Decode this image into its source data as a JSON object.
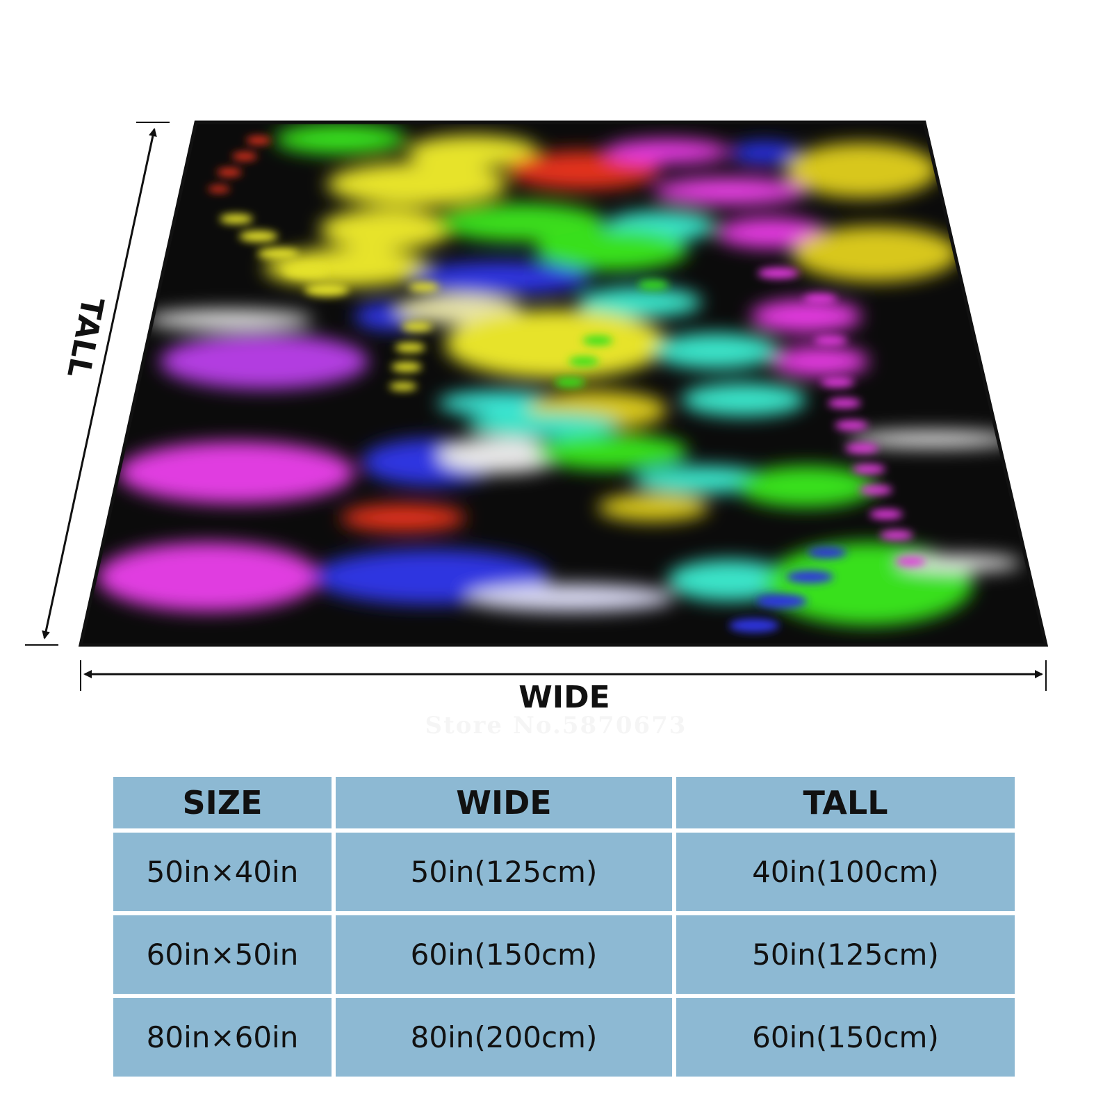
{
  "diagram": {
    "wide_label": "WIDE",
    "tall_label": "TALL",
    "watermark": "Store No.5870673"
  },
  "table": {
    "headers": [
      "SIZE",
      "WIDE",
      "TALL"
    ],
    "rows": [
      [
        "50in×40in",
        "50in(125cm)",
        "40in(100cm)"
      ],
      [
        "60in×50in",
        "60in(150cm)",
        "50in(125cm)"
      ],
      [
        "80in×60in",
        "80in(200cm)",
        "60in(150cm)"
      ]
    ]
  }
}
